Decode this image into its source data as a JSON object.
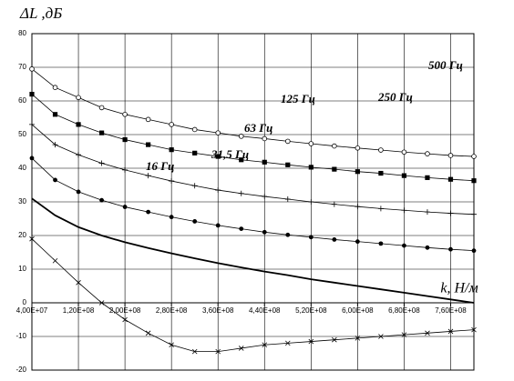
{
  "chart_data": {
    "type": "line",
    "ylabel": "ΔL ,дБ",
    "xlabel": "k, Н/м",
    "xlim": [
      40000000,
      800000000
    ],
    "ylim": [
      -20,
      80
    ],
    "yticks": [
      -20,
      -10,
      0,
      10,
      20,
      30,
      40,
      50,
      60,
      70,
      80
    ],
    "xticks": [
      {
        "value": 40000000,
        "label": "4,00E+07"
      },
      {
        "value": 120000000,
        "label": "1,20E+08"
      },
      {
        "value": 200000000,
        "label": "2,00E+08"
      },
      {
        "value": 280000000,
        "label": "2,80E+08"
      },
      {
        "value": 360000000,
        "label": "3,60E+08"
      },
      {
        "value": 440000000,
        "label": "4,40E+08"
      },
      {
        "value": 520000000,
        "label": "5,20E+08"
      },
      {
        "value": 600000000,
        "label": "6,00E+08"
      },
      {
        "value": 680000000,
        "label": "6,80E+08"
      },
      {
        "value": 760000000,
        "label": "7,60E+08"
      }
    ],
    "grid": true,
    "x": [
      40000000,
      80000000,
      120000000,
      160000000,
      200000000,
      240000000,
      280000000,
      320000000,
      360000000,
      400000000,
      440000000,
      480000000,
      520000000,
      560000000,
      600000000,
      640000000,
      680000000,
      720000000,
      760000000,
      800000000
    ],
    "series": [
      {
        "name": "500 Гц",
        "color": "#000000",
        "marker": "circle-open",
        "values": [
          69.5,
          64,
          61,
          58,
          56,
          54.5,
          53,
          51.5,
          50.5,
          49.5,
          48.8,
          48,
          47.3,
          46.6,
          46,
          45.4,
          44.8,
          44.3,
          43.8,
          43.5
        ]
      },
      {
        "name": "250 Гц",
        "color": "#000000",
        "marker": "square",
        "values": [
          62,
          56,
          53,
          50.5,
          48.5,
          47,
          45.5,
          44.5,
          43.5,
          42.5,
          41.8,
          41,
          40.3,
          39.7,
          39,
          38.5,
          37.8,
          37.2,
          36.7,
          36.3
        ]
      },
      {
        "name": "125 Гц",
        "color": "#000000",
        "marker": "plus",
        "values": [
          53,
          47,
          44,
          41.5,
          39.5,
          37.8,
          36.2,
          34.8,
          33.5,
          32.5,
          31.6,
          30.8,
          30,
          29.3,
          28.6,
          28,
          27.5,
          27,
          26.6,
          26.3
        ]
      },
      {
        "name": "63 Гц",
        "color": "#000000",
        "marker": "dot",
        "values": [
          43,
          36.5,
          33,
          30.5,
          28.5,
          27,
          25.5,
          24.2,
          23,
          22,
          21,
          20.2,
          19.5,
          18.8,
          18.2,
          17.6,
          17,
          16.4,
          15.9,
          15.5
        ]
      },
      {
        "name": "31,5 Гц",
        "color": "#000000",
        "marker": "none",
        "values": [
          31,
          26,
          22.5,
          20,
          18,
          16.3,
          14.7,
          13.2,
          11.8,
          10.5,
          9.3,
          8.2,
          7,
          6,
          5,
          4,
          3,
          2,
          1,
          0
        ]
      },
      {
        "name": "16 Гц",
        "color": "#000000",
        "marker": "cross",
        "values": [
          19,
          12.5,
          6,
          0,
          -5,
          -9,
          -12.5,
          -14.5,
          -14.5,
          -13.5,
          -12.5,
          -12,
          -11.5,
          -11,
          -10.5,
          -10,
          -9.5,
          -9,
          -8.5,
          -8
        ]
      }
    ]
  }
}
